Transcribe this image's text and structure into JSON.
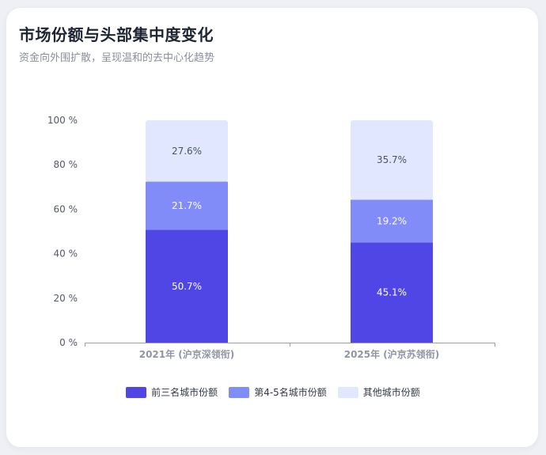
{
  "header": {
    "title": "市场份额与头部集中度变化",
    "subtitle": "资金向外围扩散，呈现温和的去中心化趋势"
  },
  "chart_data": {
    "type": "bar",
    "stacked": true,
    "categories": [
      "2021年 (沪京深领衔)",
      "2025年 (沪京苏领衔)"
    ],
    "series": [
      {
        "name": "前三名城市份额",
        "values": [
          50.7,
          45.1
        ],
        "labels": [
          "50.7%",
          "45.1%"
        ],
        "color": "#4f46e5",
        "label_color": "#ffffff"
      },
      {
        "name": "第4-5名城市份额",
        "values": [
          21.7,
          19.2
        ],
        "labels": [
          "21.7%",
          "19.2%"
        ],
        "color": "#818cf8",
        "label_color": "#ffffff"
      },
      {
        "name": "其他城市份额",
        "values": [
          27.6,
          35.7
        ],
        "labels": [
          "27.6%",
          "35.7%"
        ],
        "color": "#e0e7ff",
        "label_color": "#475569"
      }
    ],
    "ylim": [
      0,
      100
    ],
    "yticks": [
      0,
      20,
      40,
      60,
      80,
      100
    ],
    "ytick_labels": [
      "0 %",
      "20 %",
      "40 %",
      "60 %",
      "80 %",
      "100 %"
    ],
    "grid": false,
    "legend_position": "bottom",
    "xlabel": "",
    "ylabel": ""
  }
}
